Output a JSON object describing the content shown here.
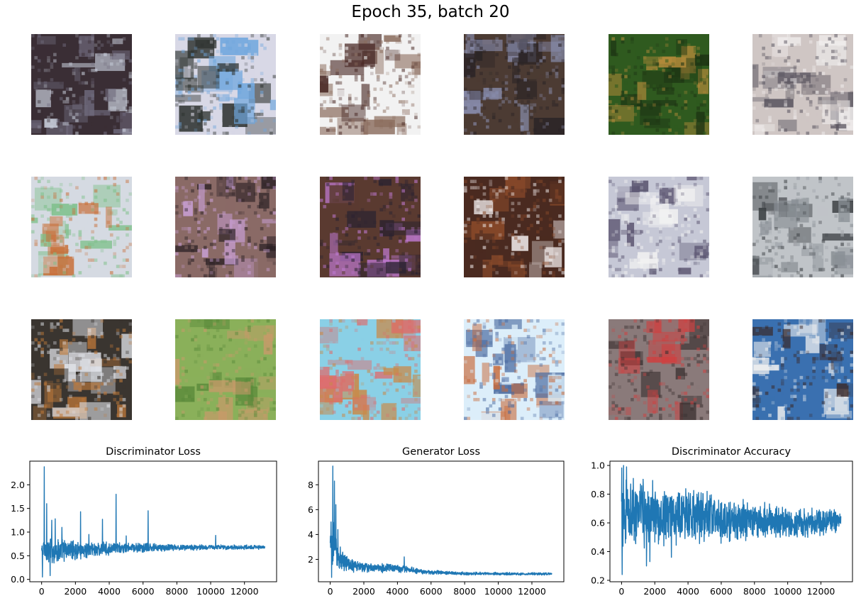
{
  "figure": {
    "title": "Epoch 35, batch 20"
  },
  "sample_grid": {
    "rows": 3,
    "cols": 6,
    "samples": [
      {
        "dominant_color": "#3a2e35",
        "accent": "#c9cfdc",
        "secondary": "#6f6a7c"
      },
      {
        "dominant_color": "#d8d8e6",
        "accent": "#6fa6dd",
        "secondary": "#2e3330"
      },
      {
        "dominant_color": "#f2f2f2",
        "accent": "#4a2a26",
        "secondary": "#8a6b5c"
      },
      {
        "dominant_color": "#4c3b33",
        "accent": "#8a8fb0",
        "secondary": "#2b2426"
      },
      {
        "dominant_color": "#2f5a1f",
        "accent": "#b38a3a",
        "secondary": "#1e3514"
      },
      {
        "dominant_color": "#cfc6c4",
        "accent": "#5a5560",
        "secondary": "#f1eeee"
      },
      {
        "dominant_color": "#d5dae2",
        "accent": "#c8703a",
        "secondary": "#7ec08a"
      },
      {
        "dominant_color": "#8a6a66",
        "accent": "#c9a0d6",
        "secondary": "#2a2024"
      },
      {
        "dominant_color": "#5a3a30",
        "accent": "#c07ad4",
        "secondary": "#2a2230"
      },
      {
        "dominant_color": "#4a2a20",
        "accent": "#f0eaea",
        "secondary": "#8a4a2a"
      },
      {
        "dominant_color": "#c6c8d6",
        "accent": "#5a5470",
        "secondary": "#f2f2f2"
      },
      {
        "dominant_color": "#c0c4c8",
        "accent": "#3a3e42",
        "secondary": "#8a9096"
      },
      {
        "dominant_color": "#3a3530",
        "accent": "#e0e2e8",
        "secondary": "#c07a3a"
      },
      {
        "dominant_color": "#8ab05a",
        "accent": "#c89a6a",
        "secondary": "#5a8a3a"
      },
      {
        "dominant_color": "#8ad0e6",
        "accent": "#e06a6a",
        "secondary": "#c88a4a"
      },
      {
        "dominant_color": "#dceefa",
        "accent": "#4a6aa0",
        "secondary": "#c86a3a"
      },
      {
        "dominant_color": "#8a7a7a",
        "accent": "#d04040",
        "secondary": "#3a3030"
      },
      {
        "dominant_color": "#3a70b0",
        "accent": "#f0f0f0",
        "secondary": "#3a2a2a"
      }
    ]
  },
  "chart_data": [
    {
      "type": "line",
      "title": "Discriminator Loss",
      "xlabel": "",
      "ylabel": "",
      "xlim": [
        -700,
        13900
      ],
      "ylim": [
        -0.05,
        2.5
      ],
      "xticks": [
        0,
        2000,
        4000,
        6000,
        8000,
        10000,
        12000
      ],
      "yticks": [
        0.0,
        0.5,
        1.0,
        1.5,
        2.0
      ],
      "ytick_labels": [
        "0.0",
        "0.5",
        "1.0",
        "1.5",
        "2.0"
      ],
      "color": "#1f77b4",
      "n_points": 13200,
      "envelope": [
        {
          "x": 0,
          "low": 0.35,
          "high": 0.85
        },
        {
          "x": 500,
          "low": 0.2,
          "high": 1.0
        },
        {
          "x": 1000,
          "low": 0.3,
          "high": 0.9
        },
        {
          "x": 2000,
          "low": 0.4,
          "high": 0.85
        },
        {
          "x": 4000,
          "low": 0.5,
          "high": 0.8
        },
        {
          "x": 6000,
          "low": 0.55,
          "high": 0.78
        },
        {
          "x": 8000,
          "low": 0.6,
          "high": 0.75
        },
        {
          "x": 10000,
          "low": 0.62,
          "high": 0.74
        },
        {
          "x": 13200,
          "low": 0.63,
          "high": 0.73
        }
      ],
      "spikes": [
        {
          "x": 50,
          "y": 0.05
        },
        {
          "x": 150,
          "y": 2.38
        },
        {
          "x": 300,
          "y": 1.6
        },
        {
          "x": 500,
          "y": 0.08
        },
        {
          "x": 600,
          "y": 1.25
        },
        {
          "x": 800,
          "y": 1.28
        },
        {
          "x": 1200,
          "y": 1.1
        },
        {
          "x": 2300,
          "y": 1.43
        },
        {
          "x": 2800,
          "y": 0.95
        },
        {
          "x": 3600,
          "y": 1.27
        },
        {
          "x": 4400,
          "y": 1.8
        },
        {
          "x": 5000,
          "y": 0.92
        },
        {
          "x": 6300,
          "y": 1.45
        },
        {
          "x": 10300,
          "y": 0.93
        }
      ]
    },
    {
      "type": "line",
      "title": "Generator Loss",
      "xlabel": "",
      "ylabel": "",
      "xlim": [
        -700,
        13900
      ],
      "ylim": [
        0.2,
        9.9
      ],
      "xticks": [
        0,
        2000,
        4000,
        6000,
        8000,
        10000,
        12000
      ],
      "yticks": [
        2,
        4,
        6,
        8
      ],
      "ytick_labels": [
        "2",
        "4",
        "6",
        "8"
      ],
      "color": "#1f77b4",
      "n_points": 13200,
      "envelope": [
        {
          "x": 0,
          "low": 0.6,
          "high": 5.0
        },
        {
          "x": 200,
          "low": 1.5,
          "high": 6.2
        },
        {
          "x": 500,
          "low": 1.0,
          "high": 3.0
        },
        {
          "x": 1000,
          "low": 0.9,
          "high": 2.4
        },
        {
          "x": 2000,
          "low": 0.9,
          "high": 1.8
        },
        {
          "x": 4000,
          "low": 0.9,
          "high": 1.7
        },
        {
          "x": 5500,
          "low": 0.8,
          "high": 1.2
        },
        {
          "x": 8000,
          "low": 0.72,
          "high": 1.0
        },
        {
          "x": 13200,
          "low": 0.7,
          "high": 0.95
        }
      ],
      "spikes": [
        {
          "x": 80,
          "y": 0.55
        },
        {
          "x": 150,
          "y": 9.5
        },
        {
          "x": 250,
          "y": 8.3
        },
        {
          "x": 330,
          "y": 6.4
        },
        {
          "x": 450,
          "y": 4.4
        },
        {
          "x": 600,
          "y": 3.0
        },
        {
          "x": 4400,
          "y": 2.2
        }
      ]
    },
    {
      "type": "line",
      "title": "Discriminator Accuracy",
      "xlabel": "",
      "ylabel": "",
      "xlim": [
        -700,
        13900
      ],
      "ylim": [
        0.19,
        1.03
      ],
      "xticks": [
        0,
        2000,
        4000,
        6000,
        8000,
        10000,
        12000
      ],
      "yticks": [
        0.2,
        0.4,
        0.6,
        0.8,
        1.0
      ],
      "ytick_labels": [
        "0.2",
        "0.4",
        "0.6",
        "0.8",
        "1.0"
      ],
      "color": "#1f77b4",
      "n_points": 13200,
      "envelope": [
        {
          "x": 0,
          "low": 0.35,
          "high": 1.0
        },
        {
          "x": 500,
          "low": 0.42,
          "high": 0.98
        },
        {
          "x": 1000,
          "low": 0.4,
          "high": 0.95
        },
        {
          "x": 2000,
          "low": 0.42,
          "high": 0.9
        },
        {
          "x": 4000,
          "low": 0.44,
          "high": 0.86
        },
        {
          "x": 6000,
          "low": 0.45,
          "high": 0.8
        },
        {
          "x": 8000,
          "low": 0.46,
          "high": 0.76
        },
        {
          "x": 10000,
          "low": 0.47,
          "high": 0.73
        },
        {
          "x": 13200,
          "low": 0.5,
          "high": 0.7
        }
      ],
      "spikes": [
        {
          "x": 30,
          "y": 0.24
        },
        {
          "x": 120,
          "y": 1.0
        },
        {
          "x": 300,
          "y": 0.99
        },
        {
          "x": 1500,
          "y": 0.3
        },
        {
          "x": 1700,
          "y": 0.33
        },
        {
          "x": 3000,
          "y": 0.36
        }
      ]
    }
  ]
}
